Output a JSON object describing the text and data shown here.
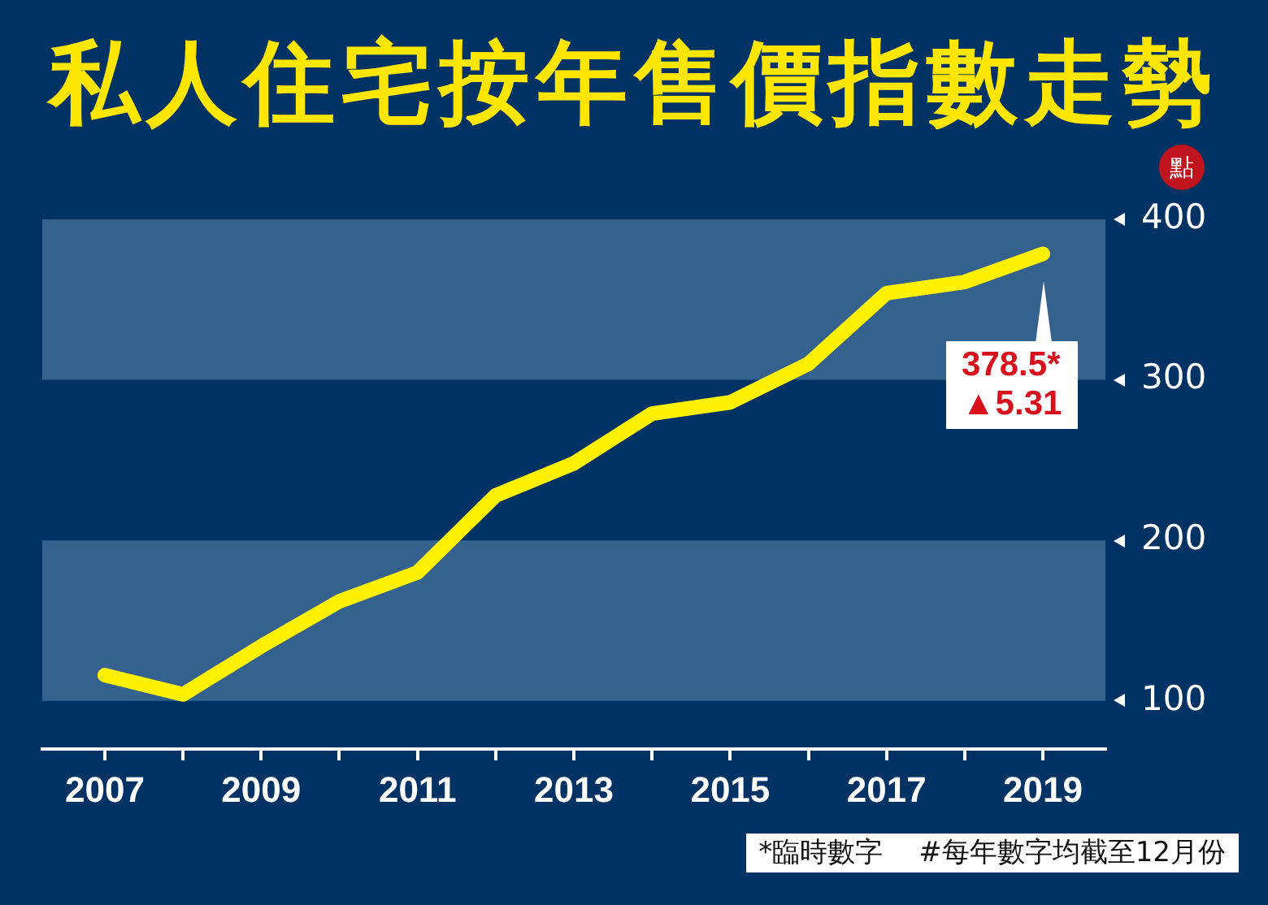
{
  "chart_data": {
    "type": "line",
    "title": "私人住宅按年售價指數走勢",
    "ylabel": "點",
    "x": [
      2007,
      2008,
      2009,
      2010,
      2011,
      2012,
      2013,
      2014,
      2015,
      2016,
      2017,
      2018,
      2019
    ],
    "values": [
      116,
      104,
      134,
      162,
      180,
      228,
      248,
      279,
      286,
      310,
      354,
      361,
      378.5
    ],
    "color": "#fff200",
    "xlim": [
      2006.2,
      2019.8
    ],
    "xticks": [
      2007,
      {
        "value": 2008,
        "label": null
      },
      2009,
      {
        "value": 2010,
        "label": null
      },
      2011,
      {
        "value": 2012,
        "label": null
      },
      2013,
      {
        "value": 2014,
        "label": null
      },
      2015,
      {
        "value": 2016,
        "label": null
      },
      2017,
      {
        "value": 2018,
        "label": null
      },
      2019
    ],
    "ylim": [
      70,
      400
    ],
    "yticks": [
      100,
      200,
      300,
      400
    ],
    "bands": [
      {
        "axis": "y",
        "from": 300,
        "to": 400,
        "color": "#34618e"
      },
      {
        "axis": "y",
        "from": 100,
        "to": 200,
        "color": "#34618e"
      }
    ],
    "marker": "none",
    "annotations": [
      "*臨時數字",
      "#每年數字均截至12月份",
      {
        "text": "378.5*",
        "x": 2019,
        "y": 378.5
      },
      "▲5.31"
    ]
  }
}
